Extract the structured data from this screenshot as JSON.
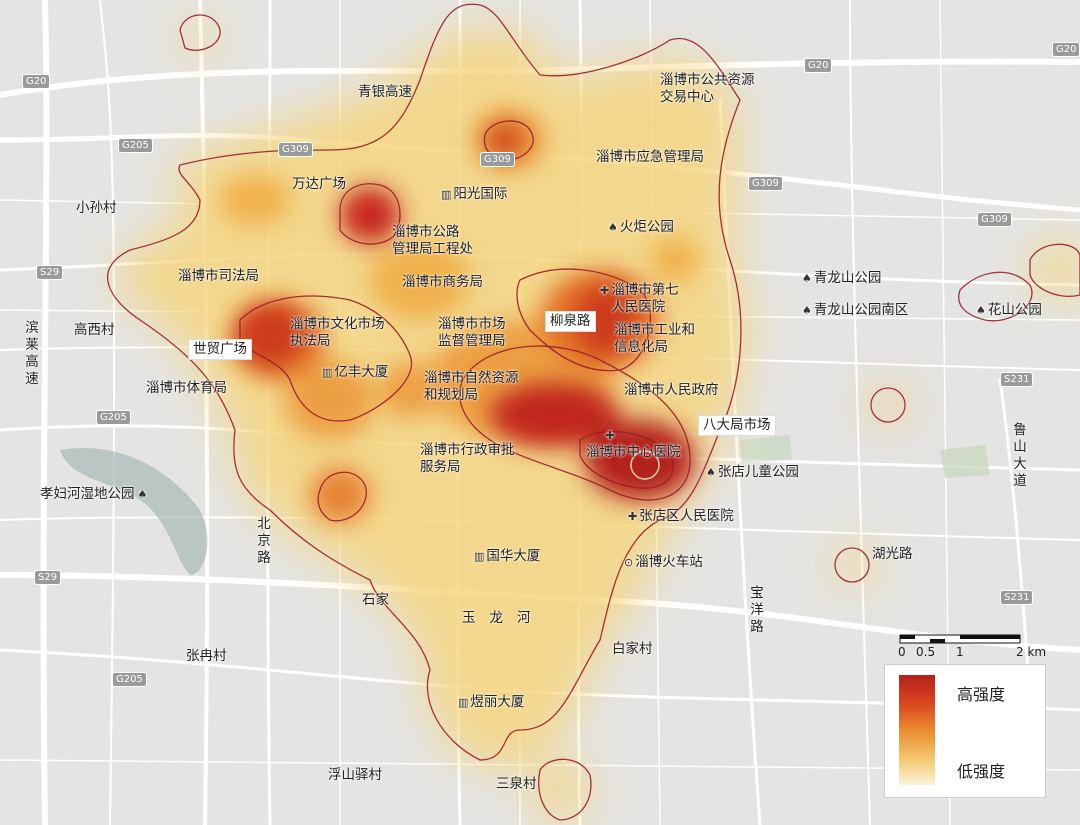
{
  "map": {
    "roads_labels": [
      {
        "id": "qingyin",
        "text": "青银高速"
      },
      {
        "id": "binlai",
        "text": "滨莱高速"
      },
      {
        "id": "beijing",
        "text": "北京路"
      },
      {
        "id": "luoshan",
        "text": "鲁山大道"
      },
      {
        "id": "huguang",
        "text": "湖光路"
      },
      {
        "id": "baoyang",
        "text": "宝洋路"
      },
      {
        "id": "yulonghe",
        "text": "玉龙河"
      }
    ],
    "shields": [
      "G20",
      "G205",
      "G309",
      "G309",
      "G309",
      "G309",
      "G205",
      "G205",
      "G20",
      "S231",
      "S231",
      "S29",
      "S29",
      "G20"
    ],
    "places": [
      {
        "id": "xiaosun",
        "text": "小孙村"
      },
      {
        "id": "gaoxi",
        "text": "高西村"
      },
      {
        "id": "wanda",
        "text": "万达广场"
      },
      {
        "id": "yangguang",
        "text": "阳光国际",
        "icon": "building"
      },
      {
        "id": "gonglu",
        "text": "淄博市公路\n管理局工程处"
      },
      {
        "id": "sifa",
        "text": "淄博市司法局"
      },
      {
        "id": "shangwu",
        "text": "淄博市商务局"
      },
      {
        "id": "shimao",
        "text": "世贸广场",
        "boxed": true
      },
      {
        "id": "wenhua",
        "text": "淄博市文化市场\n执法局"
      },
      {
        "id": "shichang",
        "text": "淄博市市场\n监督管理局"
      },
      {
        "id": "liuquan",
        "text": "柳泉路",
        "boxed": true
      },
      {
        "id": "diqi",
        "text": "淄博市第七\n人民医院",
        "icon": "hospital"
      },
      {
        "id": "gongye",
        "text": "淄博市工业和\n信息化局"
      },
      {
        "id": "yifeng",
        "text": "亿丰大厦",
        "icon": "building"
      },
      {
        "id": "tiyu",
        "text": "淄博市体育局"
      },
      {
        "id": "ziran",
        "text": "淄博市自然资源\n和规划局"
      },
      {
        "id": "renmin",
        "text": "淄博市人民政府"
      },
      {
        "id": "badaju",
        "text": "八大局市场",
        "boxed": true
      },
      {
        "id": "xingzheng",
        "text": "淄博市行政审批\n服务局"
      },
      {
        "id": "zhongxin",
        "text": "淄博市中心医院",
        "icon": "hospital"
      },
      {
        "id": "zhangdianertong",
        "text": "张店儿童公园",
        "icon": "park"
      },
      {
        "id": "xiaofu",
        "text": "孝妇河湿地公园",
        "icon": "park"
      },
      {
        "id": "zhangdianrenmin",
        "text": "张店区人民医院",
        "icon": "hospital"
      },
      {
        "id": "guohua",
        "text": "国华大厦",
        "icon": "building"
      },
      {
        "id": "huoche",
        "text": "淄博火车站",
        "icon": "train"
      },
      {
        "id": "shijia",
        "text": "石家"
      },
      {
        "id": "zhangran",
        "text": "张冉村"
      },
      {
        "id": "baijia",
        "text": "白家村"
      },
      {
        "id": "yuli",
        "text": "煜丽大厦",
        "icon": "building"
      },
      {
        "id": "fushan",
        "text": "浮山驿村"
      },
      {
        "id": "sanquan",
        "text": "三泉村"
      },
      {
        "id": "gonggong",
        "text": "淄博市公共资源\n交易中心"
      },
      {
        "id": "yingji",
        "text": "淄博市应急管理局"
      },
      {
        "id": "huoju",
        "text": "火炬公园",
        "icon": "park"
      },
      {
        "id": "qinglong",
        "text": "青龙山公园",
        "icon": "park"
      },
      {
        "id": "qinglongnan",
        "text": "青龙山公园南区",
        "icon": "park"
      },
      {
        "id": "huashan",
        "text": "花山公园",
        "icon": "park"
      }
    ],
    "scale": {
      "ticks": [
        "0",
        "0.5",
        "1",
        "2 km"
      ]
    },
    "legend": {
      "high": "高强度",
      "low": "低强度"
    },
    "colors": {
      "high": "#b4201c",
      "mid": "#e98a2e",
      "low": "#fbf3d8",
      "contour": "#9b1d2a"
    }
  }
}
